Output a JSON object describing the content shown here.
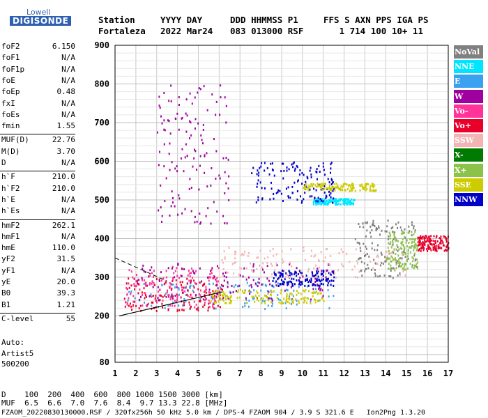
{
  "logo": {
    "top": "Lowell",
    "main": "DIGISONDE"
  },
  "header": {
    "row1": [
      "Station",
      "YYYY DAY",
      "DDD HHMMSS P1",
      "FFS S AXN PPS IGA PS"
    ],
    "row2": [
      "Fortaleza",
      "2022 Mar24",
      "083 013000 RSF",
      "   1 714 100 10+ 11"
    ]
  },
  "params": [
    {
      "name": "foF2",
      "value": "6.150"
    },
    {
      "name": "foF1",
      "value": "N/A"
    },
    {
      "name": "foF1p",
      "value": "N/A"
    },
    {
      "name": "foE",
      "value": "N/A"
    },
    {
      "name": "foEp",
      "value": "0.48"
    },
    {
      "name": "fxI",
      "value": "N/A"
    },
    {
      "name": "foEs",
      "value": "N/A"
    },
    {
      "name": "fmin",
      "value": "1.55"
    },
    {
      "name": "MUF(D)",
      "value": "22.76"
    },
    {
      "name": "M(D)",
      "value": "3.70"
    },
    {
      "name": "D",
      "value": "N/A"
    },
    {
      "name": "h`F",
      "value": "210.0"
    },
    {
      "name": "h`F2",
      "value": "210.0"
    },
    {
      "name": "h`E",
      "value": "N/A"
    },
    {
      "name": "h`Es",
      "value": "N/A"
    },
    {
      "name": "hmF2",
      "value": "262.1"
    },
    {
      "name": "hmF1",
      "value": "N/A"
    },
    {
      "name": "hmE",
      "value": "110.0"
    },
    {
      "name": "yF2",
      "value": "31.5"
    },
    {
      "name": "yF1",
      "value": "N/A"
    },
    {
      "name": "yE",
      "value": "20.0"
    },
    {
      "name": "B0",
      "value": "39.3"
    },
    {
      "name": "B1",
      "value": "1.21"
    },
    {
      "name": "C-level",
      "value": "55"
    }
  ],
  "autoscaling": {
    "label": "Auto:",
    "method": "Artist5",
    "version": "500200"
  },
  "legend": [
    {
      "label": "NoVal",
      "color": "#808080"
    },
    {
      "label": "NNE",
      "color": "#00e5ff"
    },
    {
      "label": "E",
      "color": "#3aa0f0"
    },
    {
      "label": "W",
      "color": "#a000a0"
    },
    {
      "label": "Vo-",
      "color": "#ff3399"
    },
    {
      "label": "Vo+",
      "color": "#e8002a"
    },
    {
      "label": "SSW",
      "color": "#f4b4b4"
    },
    {
      "label": "X-",
      "color": "#007a00"
    },
    {
      "label": "X+",
      "color": "#8bc34a"
    },
    {
      "label": "SSE",
      "color": "#cccc00"
    },
    {
      "label": "NNW",
      "color": "#0000c8"
    }
  ],
  "bottom": {
    "d_row": "D    100  200  400  600  800 1000 1500 3000 [km]",
    "muf_row": "MUF  6.5  6.6  7.0  7.6  8.4  9.7 13.3 22.8 [MHz]",
    "footer": "FZAOM_20220830130000.RSF / 320fx256h 50 kHz 5.0 km / DPS-4 FZAOM 904 / 3.9 S 321.6 E   Ion2Png 1.3.20"
  },
  "chart_data": {
    "type": "scatter",
    "title": "",
    "xlabel": "",
    "ylabel": "",
    "xlim": [
      1,
      17
    ],
    "ylim": [
      80,
      900
    ],
    "x_ticks": [
      1,
      2,
      3,
      4,
      5,
      6,
      7,
      8,
      9,
      10,
      11,
      12,
      13,
      14,
      15,
      16,
      17
    ],
    "y_ticks": [
      80,
      200,
      300,
      400,
      500,
      600,
      700,
      800,
      900
    ],
    "grid": true,
    "legend_position": "right",
    "clusters": [
      {
        "series": "E",
        "f": [
          1.5,
          11.5
        ],
        "h": [
          220,
          290
        ],
        "note": "lower O-trace band"
      },
      {
        "series": "Vo+",
        "f": [
          1.4,
          6.2
        ],
        "h": [
          215,
          300
        ]
      },
      {
        "series": "Vo-",
        "f": [
          1.5,
          6.0
        ],
        "h": [
          225,
          330
        ]
      },
      {
        "series": "W",
        "f": [
          2.0,
          11.5
        ],
        "h": [
          240,
          340
        ]
      },
      {
        "series": "SSE",
        "f": [
          5.5,
          11.0
        ],
        "h": [
          235,
          270
        ]
      },
      {
        "series": "NNW",
        "f": [
          8.5,
          11.5
        ],
        "h": [
          280,
          320
        ]
      },
      {
        "series": "SSW",
        "f": [
          6.0,
          15.0
        ],
        "h": [
          300,
          380
        ]
      },
      {
        "series": "NNE",
        "f": [
          10.5,
          12.5
        ],
        "h": [
          490,
          505
        ]
      },
      {
        "series": "NNW",
        "f": [
          7.5,
          11.5
        ],
        "h": [
          495,
          600
        ]
      },
      {
        "series": "SSE",
        "f": [
          10.0,
          13.5
        ],
        "h": [
          525,
          545
        ]
      },
      {
        "series": "W",
        "f": [
          3.0,
          6.5
        ],
        "h": [
          440,
          800
        ]
      },
      {
        "series": "NoVal",
        "f": [
          12.5,
          15.5
        ],
        "h": [
          300,
          450
        ]
      },
      {
        "series": "X+",
        "f": [
          14.0,
          15.5
        ],
        "h": [
          320,
          420
        ]
      },
      {
        "series": "Vo+",
        "f": [
          15.5,
          17.0
        ],
        "h": [
          370,
          410
        ]
      }
    ],
    "profile_line": {
      "f": [
        1.2,
        6.15
      ],
      "h": [
        200,
        262.1
      ]
    },
    "dashed_line": {
      "f": [
        1.0,
        3.5
      ],
      "h": [
        350,
        290
      ]
    }
  }
}
